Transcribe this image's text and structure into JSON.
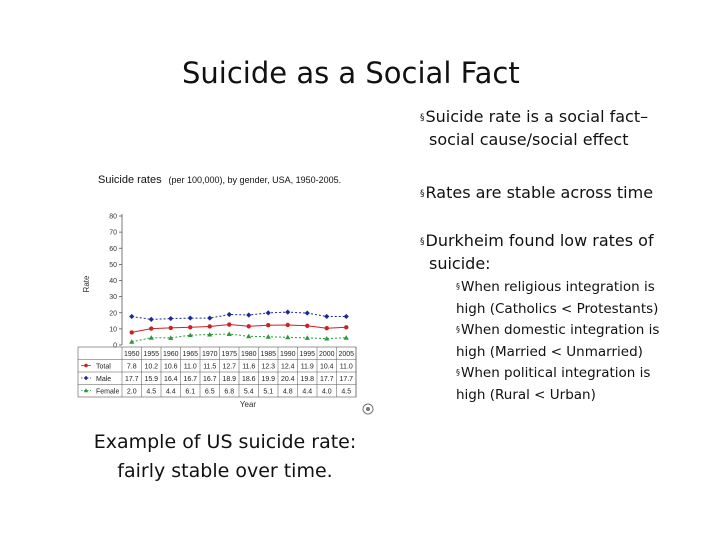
{
  "slide": {
    "title": "Suicide as a Social Fact",
    "caption_line1": "Example of US suicide rate:",
    "caption_line2": "fairly stable over time."
  },
  "bullets": [
    {
      "line1": "Suicide rate is a social fact–",
      "line2": "social cause/social effect"
    },
    {
      "line1": "Rates are stable across time",
      "line2": ""
    },
    {
      "line1": "Durkheim found low rates of",
      "line2": "suicide:"
    }
  ],
  "sub_bullets": [
    {
      "line1": "When religious integration is",
      "line2": "high (Catholics < Protestants)"
    },
    {
      "line1": "When domestic integration is",
      "line2": "high (Married < Unmarried)"
    },
    {
      "line1": "When political integration is",
      "line2": "high (Rural < Urban)"
    }
  ],
  "bullet_marker": "§",
  "chart_data": {
    "type": "line",
    "title": "Suicide rates",
    "title_suffix": "(per 100,000), by gender, USA, 1950-2005.",
    "xlabel": "Year",
    "ylabel": "Rate",
    "ylim": [
      0,
      80
    ],
    "yticks": [
      0,
      10,
      20,
      30,
      40,
      50,
      60,
      70,
      80
    ],
    "grid": false,
    "legend": "table-below",
    "categories": [
      "1950",
      "1955",
      "1960",
      "1965",
      "1970",
      "1975",
      "1980",
      "1985",
      "1990",
      "1995",
      "2000",
      "2005"
    ],
    "series": [
      {
        "name": "Total",
        "marker": "circle",
        "color": "#cc2222",
        "values": [
          7.8,
          10.2,
          10.6,
          11.0,
          11.5,
          12.7,
          11.6,
          12.3,
          12.4,
          11.9,
          10.4,
          11.0
        ],
        "labels": [
          "7.8",
          "10.2",
          "10.6",
          "11.0",
          "11.5",
          "12.7",
          "11.6",
          "12.3",
          "12.4",
          "11.9",
          "10.4",
          "11.0"
        ]
      },
      {
        "name": "Male",
        "marker": "diamond",
        "color": "#1a2a9a",
        "values": [
          17.7,
          15.9,
          16.4,
          16.7,
          16.7,
          18.9,
          18.6,
          19.9,
          20.4,
          19.8,
          17.7,
          17.7
        ],
        "labels": [
          "17.7",
          "15.9",
          "16.4",
          "16.7",
          "16.7",
          "18.9",
          "18.6",
          "19.9",
          "20.4",
          "19.8",
          "17.7",
          "17.7"
        ]
      },
      {
        "name": "Female",
        "marker": "triangle",
        "color": "#2a9a3a",
        "values": [
          2.0,
          4.5,
          4.4,
          6.1,
          6.5,
          6.8,
          5.4,
          5.1,
          4.8,
          4.4,
          4.0,
          4.5
        ],
        "labels": [
          "2.0",
          "4.5",
          "4.4",
          "6.1",
          "6.5",
          "6.8",
          "5.4",
          "5.1",
          "4.8",
          "4.4",
          "4.0",
          "4.5"
        ]
      }
    ]
  }
}
